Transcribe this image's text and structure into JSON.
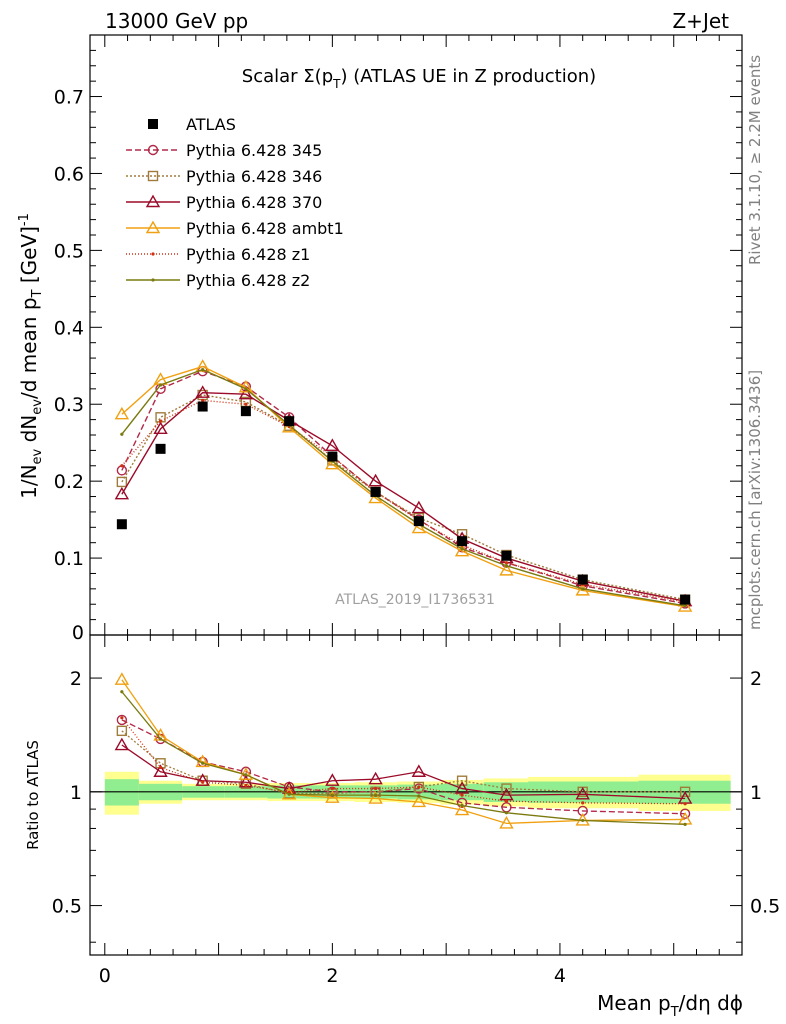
{
  "header": {
    "energy": "13000 GeV pp",
    "process": "Z+Jet"
  },
  "side_labels": {
    "rivet": "Rivet 3.1.10, ≥ 2.2M events",
    "mcplots": "mcplots.cern.ch [arXiv:1306.3436]"
  },
  "chart_data": [
    {
      "type": "line",
      "panel": "main",
      "title_prefix": "Scalar Σ(p",
      "title_sub": "T",
      "title_suffix": ") (ATLAS UE in Z production)",
      "watermark": "ATLAS_2019_I1736531",
      "ylabel": "1/N_ev dN_ev/d mean p_T [GeV]^-1",
      "ylabel_parts": {
        "a": "1/N",
        "a_sub": "ev",
        "b": " dN",
        "b_sub": "ev",
        "c": "/d mean p",
        "c_sub": "T",
        "d": " [GeV]",
        "d_sup": "-1"
      },
      "xlim": [
        -0.13,
        5.6
      ],
      "ylim": [
        0,
        0.78
      ],
      "yticks": [
        0.1,
        0.2,
        0.3,
        0.4,
        0.5,
        0.6,
        0.7
      ],
      "ytick_labels": [
        "0.1",
        "0.2",
        "0.3",
        "0.4",
        "0.5",
        "0.6",
        "0.7"
      ],
      "y0_label": "0",
      "x": [
        0.15,
        0.49,
        0.86,
        1.24,
        1.62,
        2.0,
        2.38,
        2.76,
        3.14,
        3.53,
        4.2,
        5.1
      ],
      "data": {
        "name": "ATLAS",
        "values": [
          0.144,
          0.242,
          0.297,
          0.291,
          0.278,
          0.232,
          0.186,
          0.148,
          0.122,
          0.103,
          0.072,
          0.046
        ]
      },
      "series": [
        {
          "name": "Pythia 6.428 345",
          "color": "#b22848",
          "dash": "6,3",
          "marker": "circle",
          "values": [
            0.214,
            0.32,
            0.343,
            0.323,
            0.283,
            0.232,
            0.186,
            0.15,
            0.114,
            0.094,
            0.064,
            0.041
          ]
        },
        {
          "name": "Pythia 6.428 346",
          "color": "#a07c3c",
          "dash": "2,2",
          "marker": "square",
          "values": [
            0.199,
            0.283,
            0.312,
            0.303,
            0.272,
            0.227,
            0.186,
            0.152,
            0.131,
            0.104,
            0.072,
            0.046
          ]
        },
        {
          "name": "Pythia 6.428 370",
          "color": "#9b0a28",
          "dash": "",
          "marker": "triangle",
          "values": [
            0.183,
            0.268,
            0.315,
            0.313,
            0.279,
            0.246,
            0.2,
            0.165,
            0.125,
            0.1,
            0.07,
            0.044
          ]
        },
        {
          "name": "Pythia 6.428 ambt1",
          "color": "#f0a010",
          "dash": "",
          "marker": "triangle",
          "values": [
            0.287,
            0.332,
            0.349,
            0.322,
            0.27,
            0.222,
            0.178,
            0.139,
            0.109,
            0.084,
            0.058,
            0.037
          ]
        },
        {
          "name": "Pythia 6.428 z1",
          "color": "#d03010",
          "dash": "1,2",
          "marker": "dot",
          "values": [
            0.22,
            0.278,
            0.305,
            0.3,
            0.271,
            0.232,
            0.186,
            0.149,
            0.117,
            0.094,
            0.066,
            0.043
          ]
        },
        {
          "name": "Pythia 6.428 z2",
          "color": "#7a7a10",
          "dash": "",
          "marker": "dot",
          "values": [
            0.261,
            0.325,
            0.345,
            0.32,
            0.273,
            0.226,
            0.181,
            0.144,
            0.112,
            0.09,
            0.06,
            0.038
          ]
        }
      ]
    },
    {
      "type": "line",
      "panel": "ratio",
      "ylabel": "Ratio to ATLAS",
      "xlabel_parts": {
        "a": "Mean p",
        "a_sub": "T",
        "b": "/dη dϕ"
      },
      "xlim": [
        -0.13,
        5.6
      ],
      "ylim": [
        0.37,
        2.6
      ],
      "yticks": [
        0.5,
        1,
        2
      ],
      "ytick_labels": [
        "0.5",
        "1",
        "2"
      ],
      "xticks": [
        0,
        2,
        4
      ],
      "xtick_labels": [
        "0",
        "2",
        "4"
      ],
      "x": [
        0.15,
        0.49,
        0.86,
        1.24,
        1.62,
        2.0,
        2.38,
        2.76,
        3.14,
        3.53,
        4.2,
        5.1
      ],
      "bin_edges": [
        0.0,
        0.3,
        0.68,
        1.05,
        1.43,
        1.81,
        2.19,
        2.57,
        2.95,
        3.33,
        3.72,
        4.69,
        5.5
      ],
      "band_inner": [
        0.08,
        0.05,
        0.035,
        0.035,
        0.04,
        0.04,
        0.04,
        0.045,
        0.05,
        0.06,
        0.065,
        0.07
      ],
      "band_outer": [
        0.13,
        0.07,
        0.05,
        0.05,
        0.055,
        0.055,
        0.06,
        0.065,
        0.075,
        0.085,
        0.095,
        0.11
      ],
      "band_inner_color": "#90ee90",
      "band_outer_color": "#ffff90",
      "ratios": [
        {
          "name": "Pythia 6.428 345",
          "values": [
            1.55,
            1.38,
            1.2,
            1.13,
            1.03,
            1.0,
            1.0,
            1.02,
            0.935,
            0.91,
            0.89,
            0.875
          ]
        },
        {
          "name": "Pythia 6.428 346",
          "values": [
            1.45,
            1.19,
            1.07,
            1.05,
            0.99,
            0.99,
            1.0,
            1.03,
            1.07,
            1.02,
            1.0,
            1.0
          ]
        },
        {
          "name": "Pythia 6.428 370",
          "values": [
            1.33,
            1.13,
            1.07,
            1.06,
            1.02,
            1.07,
            1.08,
            1.13,
            1.02,
            0.98,
            0.985,
            0.96
          ]
        },
        {
          "name": "Pythia 6.428 ambt1",
          "values": [
            1.98,
            1.41,
            1.2,
            1.11,
            0.985,
            0.965,
            0.96,
            0.94,
            0.895,
            0.825,
            0.84,
            0.845
          ]
        },
        {
          "name": "Pythia 6.428 z1",
          "values": [
            1.57,
            1.16,
            1.06,
            1.04,
            0.995,
            1.02,
            1.02,
            1.03,
            0.98,
            0.945,
            0.935,
            0.93
          ]
        },
        {
          "name": "Pythia 6.428 z2",
          "values": [
            1.84,
            1.38,
            1.19,
            1.11,
            0.985,
            0.98,
            0.98,
            0.975,
            0.92,
            0.88,
            0.84,
            0.82
          ]
        }
      ]
    }
  ]
}
